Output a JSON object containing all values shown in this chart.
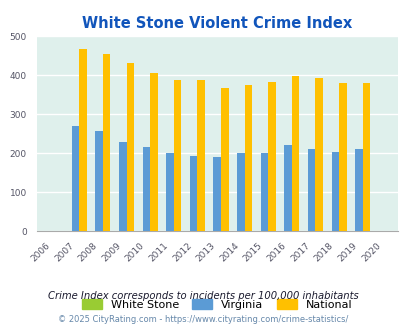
{
  "title": "White Stone Violent Crime Index",
  "years": [
    "2006",
    "2007",
    "2008",
    "2009",
    "2010",
    "2011",
    "2012",
    "2013",
    "2014",
    "2015",
    "2016",
    "2017",
    "2018",
    "2019",
    "2020"
  ],
  "white_stone": [
    0,
    0,
    0,
    0,
    0,
    0,
    0,
    0,
    0,
    0,
    0,
    0,
    0,
    0,
    0
  ],
  "virginia": [
    0,
    270,
    258,
    228,
    215,
    200,
    193,
    190,
    201,
    200,
    221,
    211,
    202,
    210,
    0
  ],
  "national": [
    0,
    467,
    454,
    431,
    405,
    387,
    387,
    368,
    376,
    383,
    397,
    394,
    381,
    379,
    0
  ],
  "bar_width": 0.32,
  "ylim": [
    0,
    500
  ],
  "yticks": [
    0,
    100,
    200,
    300,
    400,
    500
  ],
  "color_white_stone": "#99cc33",
  "color_virginia": "#5b9bd5",
  "color_national": "#ffc000",
  "bg_color": "#dff0ec",
  "title_color": "#1155bb",
  "title_fontsize": 10.5,
  "tick_fontsize": 6.5,
  "legend_fontsize": 8,
  "footnote1": "Crime Index corresponds to incidents per 100,000 inhabitants",
  "footnote2": "© 2025 CityRating.com - https://www.cityrating.com/crime-statistics/",
  "footnote1_color": "#1a1a2e",
  "footnote2_color": "#6688aa"
}
